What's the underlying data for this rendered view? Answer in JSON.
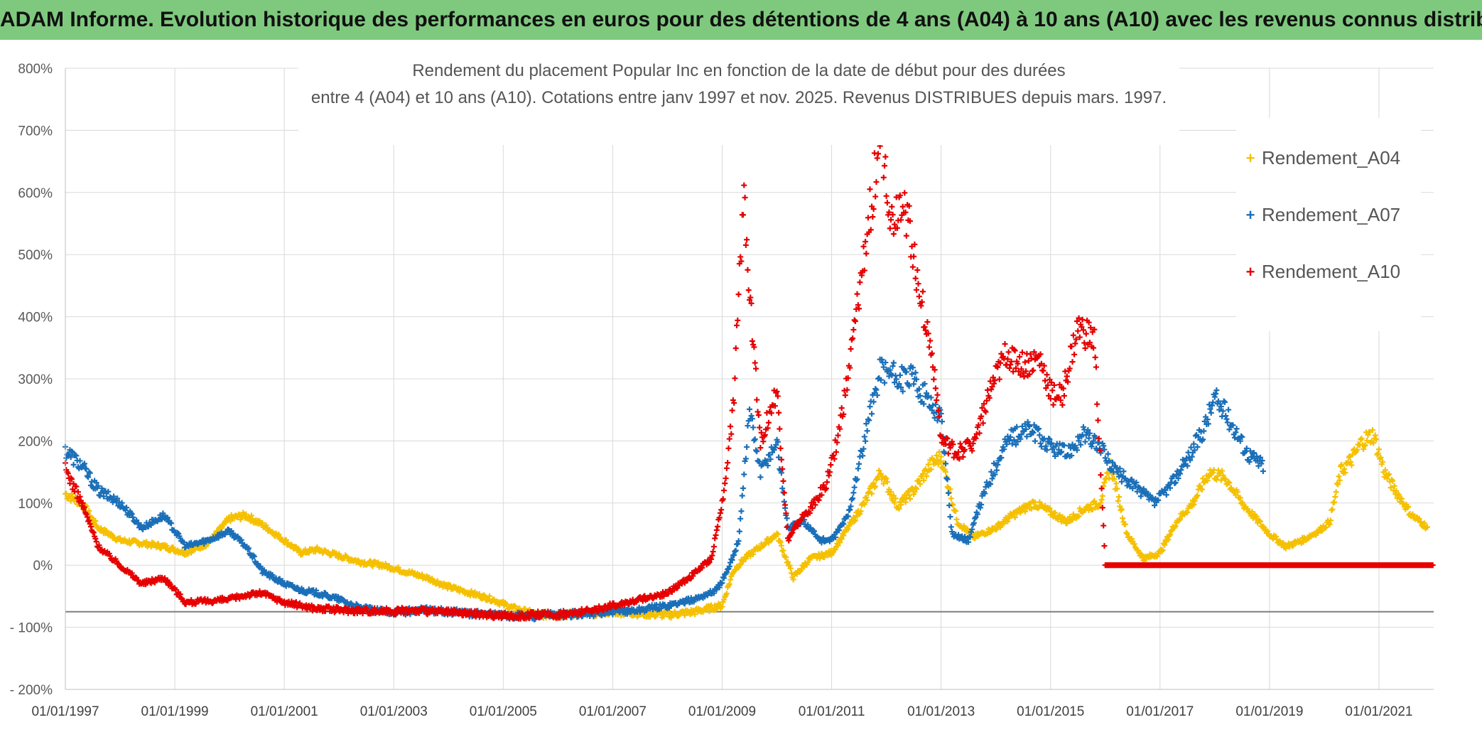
{
  "banner": {
    "title": "ADAM Informe. Evolution historique des performances en euros pour des détentions de 4 ans (A04) à 10 ans (A10) avec les revenus connus distribués"
  },
  "chart_data": {
    "type": "scatter",
    "title_line1": "Rendement du placement Popular Inc en fonction de la date de début pour des durées",
    "title_line2": "entre 4 (A04) et 10 ans (A10). Cotations entre janv 1997 et nov. 2025. Revenus DISTRIBUES depuis mars. 1997.",
    "xlabel": "",
    "ylabel": "",
    "xlim": [
      1997.0,
      2022.0
    ],
    "ylim": [
      -200,
      800
    ],
    "y_ticks": [
      -200,
      -100,
      0,
      100,
      200,
      300,
      400,
      500,
      600,
      700,
      800
    ],
    "y_tick_labels": [
      "- 200%",
      "- 100%",
      "0%",
      "100%",
      "200%",
      "300%",
      "400%",
      "500%",
      "600%",
      "700%",
      "800%"
    ],
    "x_ticks": [
      1997,
      1999,
      2001,
      2003,
      2005,
      2007,
      2009,
      2011,
      2013,
      2015,
      2017,
      2019,
      2021
    ],
    "x_tick_labels": [
      "01/01/1997",
      "01/01/1999",
      "01/01/2001",
      "01/01/2003",
      "01/01/2005",
      "01/01/2007",
      "01/01/2009",
      "01/01/2011",
      "01/01/2013",
      "01/01/2015",
      "01/01/2017",
      "01/01/2019",
      "01/01/2021"
    ],
    "reference_line_y": -75,
    "grid": true,
    "legend_position": "right",
    "marker": "+",
    "series": [
      {
        "name": "Rendement_A04",
        "color": "#f5c000",
        "x": [
          1997.0,
          1997.3,
          1997.6,
          1998.0,
          1998.4,
          1998.8,
          1999.2,
          1999.6,
          2000.0,
          2000.3,
          2000.6,
          2001.0,
          2001.3,
          2001.6,
          2002.0,
          2002.4,
          2002.8,
          2003.2,
          2003.6,
          2004.0,
          2004.4,
          2004.8,
          2005.2,
          2005.6,
          2006.0,
          2006.5,
          2007.0,
          2007.5,
          2008.0,
          2008.5,
          2009.0,
          2009.2,
          2009.4,
          2009.7,
          2010.0,
          2010.3,
          2010.6,
          2011.0,
          2011.3,
          2011.6,
          2011.9,
          2012.2,
          2012.5,
          2012.8,
          2013.0,
          2013.3,
          2013.6,
          2014.0,
          2014.3,
          2014.7,
          2015.0,
          2015.3,
          2015.6,
          2015.9,
          2016.1,
          2016.4,
          2016.7,
          2017.0,
          2017.3,
          2017.6,
          2017.9,
          2018.2,
          2018.5,
          2018.8,
          2019.0,
          2019.3,
          2019.6,
          2019.9,
          2020.1,
          2020.3,
          2020.5,
          2020.7,
          2020.9,
          2021.1,
          2021.3,
          2021.6,
          2021.9
        ],
        "y": [
          115,
          100,
          60,
          40,
          35,
          30,
          20,
          35,
          75,
          80,
          65,
          40,
          20,
          25,
          15,
          5,
          0,
          -10,
          -20,
          -35,
          -45,
          -55,
          -70,
          -80,
          -80,
          -78,
          -75,
          -78,
          -80,
          -75,
          -65,
          -10,
          10,
          30,
          50,
          -20,
          10,
          20,
          60,
          100,
          150,
          95,
          120,
          160,
          175,
          70,
          45,
          60,
          80,
          100,
          85,
          70,
          90,
          100,
          160,
          50,
          10,
          20,
          70,
          100,
          150,
          140,
          100,
          70,
          50,
          30,
          40,
          55,
          70,
          150,
          170,
          200,
          210,
          150,
          120,
          80,
          60
        ]
      },
      {
        "name": "Rendement_A07",
        "color": "#1a6fb8",
        "x": [
          1997.0,
          1997.3,
          1997.6,
          1998.0,
          1998.4,
          1998.8,
          1999.2,
          1999.6,
          2000.0,
          2000.3,
          2000.6,
          2001.0,
          2001.3,
          2001.6,
          2002.0,
          2002.4,
          2002.8,
          2003.2,
          2003.6,
          2004.0,
          2004.4,
          2004.8,
          2005.2,
          2005.6,
          2006.0,
          2006.5,
          2007.0,
          2007.5,
          2008.0,
          2008.5,
          2008.9,
          2009.1,
          2009.3,
          2009.5,
          2009.7,
          2010.0,
          2010.2,
          2010.5,
          2010.8,
          2011.0,
          2011.3,
          2011.6,
          2011.9,
          2012.2,
          2012.5,
          2012.8,
          2013.0,
          2013.2,
          2013.5,
          2013.8,
          2014.2,
          2014.6,
          2015.0,
          2015.3,
          2015.6,
          2015.9,
          2016.2,
          2016.5,
          2016.9,
          2017.2,
          2017.5,
          2017.8,
          2018.0,
          2018.3,
          2018.6,
          2018.9
        ],
        "y": [
          185,
          160,
          120,
          100,
          60,
          80,
          30,
          40,
          55,
          30,
          -10,
          -30,
          -40,
          -45,
          -55,
          -70,
          -75,
          -75,
          -72,
          -75,
          -78,
          -80,
          -82,
          -82,
          -80,
          -78,
          -76,
          -72,
          -65,
          -55,
          -40,
          -10,
          40,
          250,
          150,
          200,
          60,
          70,
          40,
          40,
          80,
          200,
          320,
          300,
          300,
          260,
          240,
          50,
          40,
          120,
          200,
          220,
          190,
          180,
          210,
          190,
          150,
          130,
          100,
          130,
          170,
          220,
          270,
          230,
          180,
          160
        ]
      },
      {
        "name": "Rendement_A10",
        "color": "#e60000",
        "x": [
          1997.0,
          1997.3,
          1997.6,
          1998.0,
          1998.4,
          1998.8,
          1999.2,
          1999.6,
          2000.0,
          2000.3,
          2000.6,
          2001.0,
          2001.3,
          2001.6,
          2002.0,
          2002.4,
          2002.8,
          2003.2,
          2003.6,
          2004.0,
          2004.4,
          2004.8,
          2005.2,
          2005.6,
          2006.0,
          2006.5,
          2007.0,
          2007.5,
          2008.0,
          2008.4,
          2008.8,
          2009.0,
          2009.2,
          2009.4,
          2009.5,
          2009.7,
          2010.0,
          2010.2,
          2010.4,
          2010.6,
          2010.9,
          2011.1,
          2011.3,
          2011.6,
          2011.9,
          2012.1,
          2012.3,
          2012.5,
          2012.7,
          2012.9,
          2013.0,
          2013.3,
          2013.6,
          2013.9,
          2014.2,
          2014.5,
          2014.8,
          2015.0,
          2015.2,
          2015.5,
          2015.8,
          2016.0,
          2016.5,
          2017.0,
          2017.5,
          2018.0,
          2018.5,
          2019.0,
          2019.5,
          2020.0,
          2020.5,
          2021.0,
          2021.5,
          2022.0
        ],
        "y": [
          155,
          100,
          30,
          0,
          -30,
          -20,
          -60,
          -58,
          -55,
          -48,
          -45,
          -60,
          -65,
          -70,
          -72,
          -73,
          -74,
          -73,
          -74,
          -76,
          -78,
          -80,
          -82,
          -80,
          -80,
          -75,
          -65,
          -55,
          -45,
          -20,
          10,
          100,
          250,
          600,
          450,
          200,
          280,
          40,
          70,
          90,
          130,
          200,
          300,
          500,
          700,
          550,
          600,
          500,
          400,
          300,
          200,
          180,
          200,
          280,
          340,
          320,
          330,
          280,
          270,
          380,
          360,
          0,
          0,
          0,
          0,
          0,
          0,
          0,
          0,
          0,
          0,
          0,
          0,
          0
        ]
      }
    ]
  }
}
